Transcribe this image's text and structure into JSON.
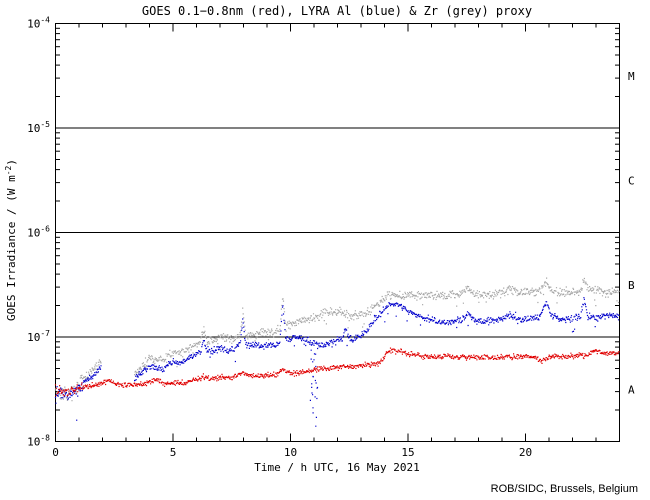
{
  "chart": {
    "title": "GOES 0.1−0.8nm (red), LYRA Al (blue) & Zr (grey) proxy",
    "title_color": "#cc0000",
    "xlabel": "Time / h UTC, 16 May 2021",
    "ylabel_parts": {
      "pre": "GOES Irradiance / (W m",
      "sup": "-2",
      "post": ")"
    },
    "credit": "ROB/SIDC, Brussels, Belgium",
    "credit_color": "#000080",
    "axis_color": "#000000",
    "background": "#ffffff"
  },
  "chart_data": {
    "type": "scatter",
    "title": "GOES 0.1-0.8nm (red), LYRA Al (blue) & Zr (grey) proxy",
    "xlabel": "Time / h UTC, 16 May 2021",
    "ylabel": "GOES Irradiance / (W m^-2)",
    "x_range": [
      0,
      24
    ],
    "x_major_ticks": [
      0,
      5,
      10,
      15,
      20
    ],
    "x_minor_step": 1,
    "y_scale": "log",
    "y_range": [
      1e-08,
      0.0001
    ],
    "y_decades": [
      -4,
      -5,
      -6,
      -7,
      -8
    ],
    "hlines": [
      1e-05,
      1e-06,
      1e-07
    ],
    "flare_class_labels": [
      {
        "label": "M",
        "v": 3.16e-05
      },
      {
        "label": "C",
        "v": 3.16e-06
      },
      {
        "label": "B",
        "v": 3.16e-07
      },
      {
        "label": "A",
        "v": 3.16e-08
      }
    ],
    "series": [
      {
        "name": "LYRA Zr proxy",
        "color": "#a6a6a6",
        "gaps": [
          [
            1.95,
            3.35
          ]
        ],
        "anchors": [
          [
            0,
            3.1e-08
          ],
          [
            0.3,
            3e-08
          ],
          [
            0.6,
            2.9e-08
          ],
          [
            1,
            3.5e-08
          ],
          [
            1.5,
            4.6e-08
          ],
          [
            1.9,
            5.7e-08
          ],
          [
            1.95,
            5.8e-08
          ],
          [
            3.35,
            4.3e-08
          ],
          [
            3.7,
            5.2e-08
          ],
          [
            4,
            6.3e-08
          ],
          [
            4.3,
            6.1e-08
          ],
          [
            4.6,
            6e-08
          ],
          [
            5,
            7.2e-08
          ],
          [
            5.3,
            7e-08
          ],
          [
            5.7,
            7.8e-08
          ],
          [
            6,
            8.6e-08
          ],
          [
            6.15,
            8.8e-08
          ],
          [
            6.3,
            1.25e-07
          ],
          [
            6.45,
            9e-08
          ],
          [
            6.7,
            9.2e-08
          ],
          [
            7,
            9.8e-08
          ],
          [
            7.3,
            9.6e-08
          ],
          [
            7.6,
            9.7e-08
          ],
          [
            7.85,
            1.05e-07
          ],
          [
            7.97,
            1.75e-07
          ],
          [
            8.1,
            1.03e-07
          ],
          [
            8.5,
            1.07e-07
          ],
          [
            9,
            1.12e-07
          ],
          [
            9.3,
            1.12e-07
          ],
          [
            9.55,
            1.2e-07
          ],
          [
            9.67,
            2.45e-07
          ],
          [
            9.8,
            1.3e-07
          ],
          [
            10,
            1.35e-07
          ],
          [
            10.3,
            1.4e-07
          ],
          [
            10.6,
            1.45e-07
          ],
          [
            10.9,
            1.5e-07
          ],
          [
            11.2,
            1.58e-07
          ],
          [
            11.5,
            1.7e-07
          ],
          [
            11.8,
            1.72e-07
          ],
          [
            12,
            1.75e-07
          ],
          [
            12.3,
            1.68e-07
          ],
          [
            12.6,
            1.62e-07
          ],
          [
            13,
            1.6e-07
          ],
          [
            13.3,
            1.75e-07
          ],
          [
            13.6,
            2e-07
          ],
          [
            13.9,
            2.3e-07
          ],
          [
            14.2,
            2.5e-07
          ],
          [
            14.5,
            2.55e-07
          ],
          [
            14.8,
            2.45e-07
          ],
          [
            15.1,
            2.6e-07
          ],
          [
            15.4,
            2.55e-07
          ],
          [
            15.7,
            2.5e-07
          ],
          [
            16,
            2.55e-07
          ],
          [
            16.3,
            2.5e-07
          ],
          [
            16.6,
            2.48e-07
          ],
          [
            17,
            2.55e-07
          ],
          [
            17.3,
            2.6e-07
          ],
          [
            17.55,
            2.9e-07
          ],
          [
            17.8,
            2.6e-07
          ],
          [
            18.2,
            2.55e-07
          ],
          [
            18.6,
            2.6e-07
          ],
          [
            19,
            2.65e-07
          ],
          [
            19.35,
            2.9e-07
          ],
          [
            19.7,
            2.7e-07
          ],
          [
            20,
            2.65e-07
          ],
          [
            20.3,
            2.7e-07
          ],
          [
            20.6,
            2.75e-07
          ],
          [
            20.9,
            3.4e-07
          ],
          [
            21.1,
            2.8e-07
          ],
          [
            21.5,
            2.7e-07
          ],
          [
            21.8,
            2.68e-07
          ],
          [
            22.1,
            2.7e-07
          ],
          [
            22.35,
            2.8e-07
          ],
          [
            22.5,
            3.6e-07
          ],
          [
            22.65,
            2.85e-07
          ],
          [
            23,
            2.75e-07
          ],
          [
            23.4,
            2.72e-07
          ],
          [
            23.7,
            2.7e-07
          ],
          [
            24,
            2.75e-07
          ]
        ]
      },
      {
        "name": "LYRA Al proxy",
        "color": "#0000cc",
        "gaps": [
          [
            1.95,
            3.35
          ]
        ],
        "dropout": {
          "t_center": 11.0,
          "t_spread": 0.18,
          "v_min": 1.1e-08,
          "v_max": 8e-08,
          "count": 24
        },
        "anchors": [
          [
            0,
            3e-08
          ],
          [
            0.3,
            2.9e-08
          ],
          [
            0.6,
            2.8e-08
          ],
          [
            1,
            3.3e-08
          ],
          [
            1.5,
            4.1e-08
          ],
          [
            1.9,
            5.1e-08
          ],
          [
            1.95,
            5.2e-08
          ],
          [
            3.35,
            4e-08
          ],
          [
            3.7,
            4.6e-08
          ],
          [
            4,
            5.3e-08
          ],
          [
            4.3,
            5.1e-08
          ],
          [
            4.6,
            5e-08
          ],
          [
            5,
            5.8e-08
          ],
          [
            5.3,
            5.5e-08
          ],
          [
            5.7,
            6.3e-08
          ],
          [
            6,
            6.9e-08
          ],
          [
            6.15,
            7e-08
          ],
          [
            6.3,
            9.4e-08
          ],
          [
            6.45,
            7.3e-08
          ],
          [
            6.7,
            7.3e-08
          ],
          [
            7,
            7.7e-08
          ],
          [
            7.3,
            7.5e-08
          ],
          [
            7.6,
            7.6e-08
          ],
          [
            7.85,
            8.5e-08
          ],
          [
            7.97,
            1.45e-07
          ],
          [
            8.1,
            8.3e-08
          ],
          [
            8.5,
            8.4e-08
          ],
          [
            9,
            8.3e-08
          ],
          [
            9.3,
            8.2e-08
          ],
          [
            9.55,
            9e-08
          ],
          [
            9.67,
            2.1e-07
          ],
          [
            9.8,
            9.8e-08
          ],
          [
            10,
            9.6e-08
          ],
          [
            10.3,
            9.8e-08
          ],
          [
            10.6,
            9.4e-08
          ],
          [
            10.9,
            8.9e-08
          ],
          [
            11.2,
            8.3e-08
          ],
          [
            11.5,
            8.6e-08
          ],
          [
            11.8,
            8.8e-08
          ],
          [
            12,
            9.4e-08
          ],
          [
            12.2,
            9.6e-08
          ],
          [
            12.35,
            1.2e-07
          ],
          [
            12.5,
            9.6e-08
          ],
          [
            12.7,
            9.8e-08
          ],
          [
            13,
            1e-07
          ],
          [
            13.3,
            1.2e-07
          ],
          [
            13.6,
            1.5e-07
          ],
          [
            13.9,
            1.75e-07
          ],
          [
            14.2,
            2e-07
          ],
          [
            14.5,
            2.05e-07
          ],
          [
            14.8,
            1.95e-07
          ],
          [
            15.1,
            1.7e-07
          ],
          [
            15.4,
            1.6e-07
          ],
          [
            15.7,
            1.5e-07
          ],
          [
            16,
            1.45e-07
          ],
          [
            16.3,
            1.4e-07
          ],
          [
            16.6,
            1.38e-07
          ],
          [
            17,
            1.42e-07
          ],
          [
            17.3,
            1.45e-07
          ],
          [
            17.55,
            1.7e-07
          ],
          [
            17.8,
            1.45e-07
          ],
          [
            18.2,
            1.42e-07
          ],
          [
            18.6,
            1.45e-07
          ],
          [
            19,
            1.5e-07
          ],
          [
            19.35,
            1.65e-07
          ],
          [
            19.7,
            1.5e-07
          ],
          [
            20,
            1.45e-07
          ],
          [
            20.3,
            1.5e-07
          ],
          [
            20.6,
            1.55e-07
          ],
          [
            20.9,
            2.2e-07
          ],
          [
            21.1,
            1.6e-07
          ],
          [
            21.5,
            1.5e-07
          ],
          [
            21.8,
            1.48e-07
          ],
          [
            22.1,
            1.5e-07
          ],
          [
            22.35,
            1.6e-07
          ],
          [
            22.5,
            2.35e-07
          ],
          [
            22.65,
            1.6e-07
          ],
          [
            23,
            1.55e-07
          ],
          [
            23.4,
            1.6e-07
          ],
          [
            23.7,
            1.58e-07
          ],
          [
            24,
            1.6e-07
          ]
        ]
      },
      {
        "name": "GOES 0.1-0.8nm",
        "color": "#e00000",
        "gaps": [],
        "anchors": [
          [
            0,
            3.1e-08
          ],
          [
            0.5,
            3e-08
          ],
          [
            1,
            3.3e-08
          ],
          [
            1.5,
            3.4e-08
          ],
          [
            2,
            3.6e-08
          ],
          [
            2.3,
            3.9e-08
          ],
          [
            2.6,
            3.5e-08
          ],
          [
            3,
            3.5e-08
          ],
          [
            3.5,
            3.5e-08
          ],
          [
            4,
            3.7e-08
          ],
          [
            4.3,
            4e-08
          ],
          [
            4.6,
            3.6e-08
          ],
          [
            5,
            3.6e-08
          ],
          [
            5.5,
            3.7e-08
          ],
          [
            6,
            3.9e-08
          ],
          [
            6.3,
            4.2e-08
          ],
          [
            6.6,
            4e-08
          ],
          [
            7,
            4.1e-08
          ],
          [
            7.5,
            4.1e-08
          ],
          [
            7.95,
            4.6e-08
          ],
          [
            8.2,
            4.3e-08
          ],
          [
            8.5,
            4.2e-08
          ],
          [
            9,
            4.3e-08
          ],
          [
            9.4,
            4.3e-08
          ],
          [
            9.7,
            4.9e-08
          ],
          [
            10,
            4.5e-08
          ],
          [
            10.5,
            4.6e-08
          ],
          [
            11,
            4.9e-08
          ],
          [
            11.5,
            5e-08
          ],
          [
            12,
            5.1e-08
          ],
          [
            12.5,
            5.2e-08
          ],
          [
            13,
            5.3e-08
          ],
          [
            13.5,
            5.5e-08
          ],
          [
            13.9,
            5.8e-08
          ],
          [
            14.1,
            7.2e-08
          ],
          [
            14.4,
            7.5e-08
          ],
          [
            14.7,
            7.2e-08
          ],
          [
            15,
            6.9e-08
          ],
          [
            15.5,
            6.6e-08
          ],
          [
            16,
            6.4e-08
          ],
          [
            16.5,
            6.4e-08
          ],
          [
            17,
            6.5e-08
          ],
          [
            17.5,
            6.4e-08
          ],
          [
            18,
            6.4e-08
          ],
          [
            18.5,
            6.3e-08
          ],
          [
            19,
            6.4e-08
          ],
          [
            19.5,
            6.4e-08
          ],
          [
            20,
            6.6e-08
          ],
          [
            20.4,
            6.4e-08
          ],
          [
            20.7,
            5.9e-08
          ],
          [
            21,
            6.4e-08
          ],
          [
            21.5,
            6.5e-08
          ],
          [
            22,
            6.5e-08
          ],
          [
            22.5,
            6.6e-08
          ],
          [
            23,
            7.4e-08
          ],
          [
            23.3,
            7e-08
          ],
          [
            23.6,
            7e-08
          ],
          [
            24,
            7e-08
          ]
        ]
      }
    ],
    "outliers": [
      {
        "t": 0.12,
        "v": 1.25e-08,
        "series": "LYRA Zr proxy"
      },
      {
        "t": 0.9,
        "v": 1.6e-08,
        "series": "LYRA Al proxy"
      }
    ],
    "legend_position": "none",
    "grid": "off"
  }
}
